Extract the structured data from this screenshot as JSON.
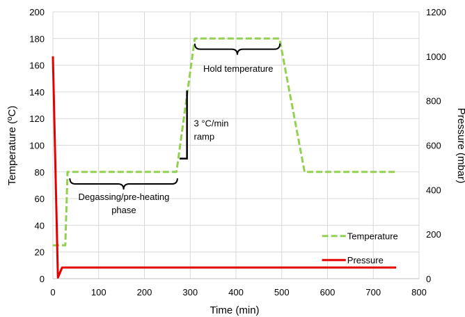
{
  "chart_data": {
    "type": "line",
    "xlabel": "Time (min)",
    "ylabel": "Temperature (ºC)",
    "y2label": "Pressure (mbar)",
    "xlim": [
      0,
      800
    ],
    "ylim": [
      0,
      200
    ],
    "y2lim": [
      0,
      1200
    ],
    "xticks": [
      "0",
      "100",
      "200",
      "300",
      "400",
      "500",
      "600",
      "700",
      "800"
    ],
    "yticks": [
      "0",
      "20",
      "40",
      "60",
      "80",
      "100",
      "120",
      "140",
      "160",
      "180",
      "200"
    ],
    "y2ticks": [
      "0",
      "200",
      "400",
      "600",
      "800",
      "1000",
      "1200"
    ],
    "grid": true,
    "legend_position": "right",
    "series": [
      {
        "name": "Temperature",
        "axis": "left",
        "color": "#92D050",
        "style": "dashed",
        "x": [
          0,
          27,
          32,
          270,
          310,
          495,
          550,
          750
        ],
        "y": [
          25,
          25,
          80,
          80,
          180,
          180,
          80,
          80
        ]
      },
      {
        "name": "Pressure",
        "axis": "right",
        "color": "#E50000",
        "style": "solid",
        "x": [
          0,
          11,
          20,
          750
        ],
        "y": [
          1000,
          5,
          50,
          50
        ]
      }
    ],
    "annotations": [
      {
        "text_lines": [
          "Degassing/pre-heating",
          "phase"
        ]
      },
      {
        "text_lines": [
          "3 °C/min",
          "ramp"
        ]
      },
      {
        "text_lines": [
          "Hold temperature"
        ]
      }
    ]
  }
}
